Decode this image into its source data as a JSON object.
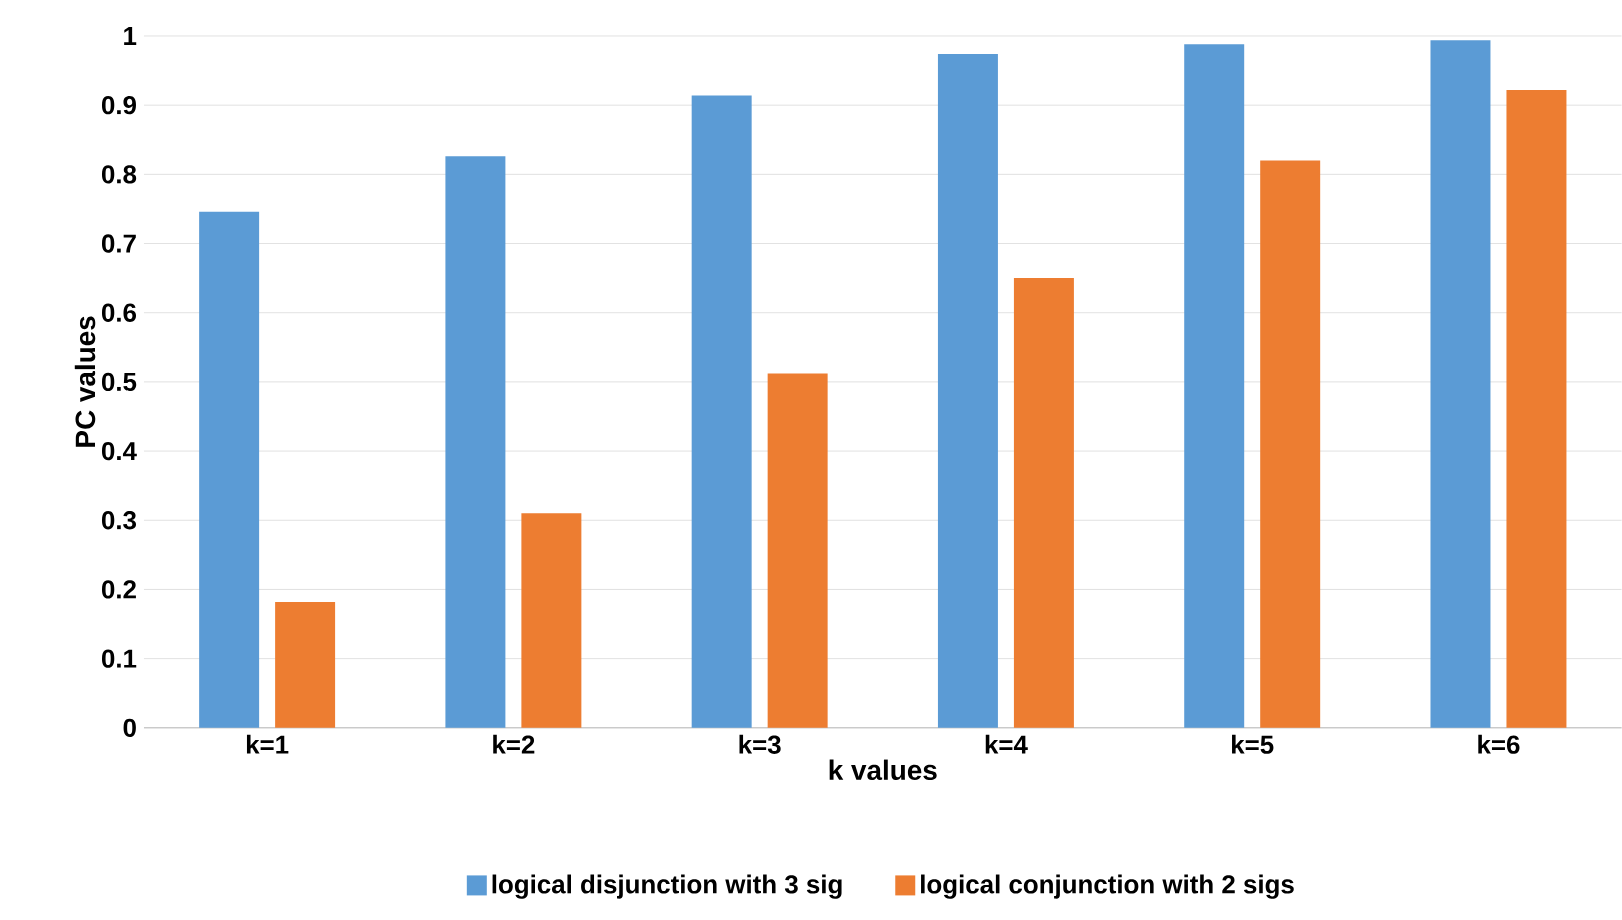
{
  "chart_data": {
    "type": "bar",
    "xlabel": "k values",
    "ylabel": "PC values",
    "categories": [
      "k=1",
      "k=2",
      "k=3",
      "k=4",
      "k=5",
      "k=6"
    ],
    "series": [
      {
        "name": "logical disjunction with 3 sig",
        "color": "#5b9bd5",
        "values": [
          0.746,
          0.826,
          0.914,
          0.974,
          0.988,
          0.994
        ]
      },
      {
        "name": "logical conjunction with 2 sigs",
        "color": "#ed7d31",
        "values": [
          0.182,
          0.31,
          0.512,
          0.65,
          0.82,
          0.922
        ]
      }
    ],
    "ylim": [
      0,
      1
    ],
    "yticks": [
      0,
      0.1,
      0.2,
      0.3,
      0.4,
      0.5,
      0.6,
      0.7,
      0.8,
      0.9,
      1
    ],
    "grid": "y",
    "legend": "bottom"
  }
}
